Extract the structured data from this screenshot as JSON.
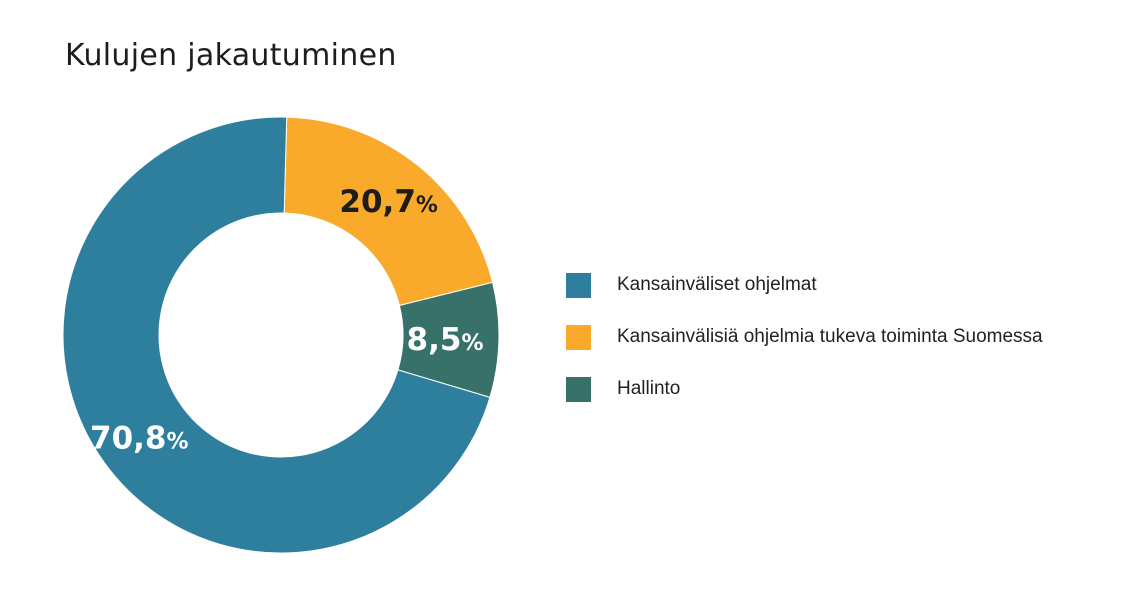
{
  "chart_data": {
    "type": "pie",
    "style": "donut",
    "title": "Kulujen jakautuminen",
    "slices": [
      {
        "name": "Kansainväliset ohjelmat",
        "value": 70.8,
        "number": "70,8",
        "unit": "%",
        "color": "#2e7f9d",
        "label_color": "#ffffff"
      },
      {
        "name": "Kansainvälisiä ohjelmia tukeva toiminta Suomessa",
        "value": 20.7,
        "number": "20,7",
        "unit": "%",
        "color": "#f9aa2b",
        "label_color": "#1d1d1b"
      },
      {
        "name": "Hallinto",
        "value": 8.5,
        "number": "8,5",
        "unit": "%",
        "color": "#37716a",
        "label_color": "#ffffff"
      }
    ],
    "legend_position": "right"
  }
}
